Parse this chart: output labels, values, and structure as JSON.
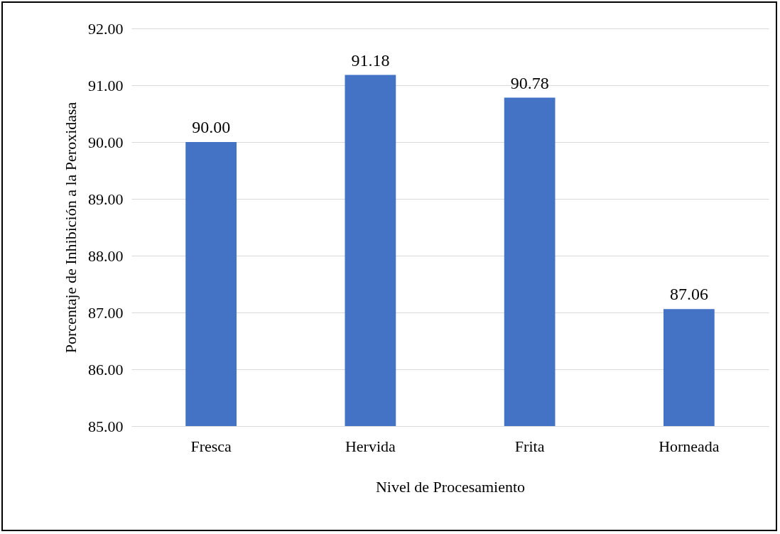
{
  "chart_data": {
    "type": "bar",
    "xlabel": "Nivel de Procesamiento",
    "ylabel": "Porcentaje de Inhibición a la Peroxidasa",
    "categories": [
      "Fresca",
      "Hervida",
      "Frita",
      "Horneada"
    ],
    "values": [
      90.0,
      91.18,
      90.78,
      87.06
    ],
    "value_labels": [
      "90.00",
      "91.18",
      "90.78",
      "87.06"
    ],
    "color": "#4472c4",
    "ylim": [
      85,
      92
    ],
    "yticks": [
      {
        "value": 85,
        "label": "85.00"
      },
      {
        "value": 86,
        "label": "86.00"
      },
      {
        "value": 87,
        "label": "87.00"
      },
      {
        "value": 88,
        "label": "88.00"
      },
      {
        "value": 89,
        "label": "89.00"
      },
      {
        "value": 90,
        "label": "90.00"
      },
      {
        "value": 91,
        "label": "91.00"
      },
      {
        "value": 92,
        "label": "92.00"
      }
    ],
    "grid": "y"
  }
}
